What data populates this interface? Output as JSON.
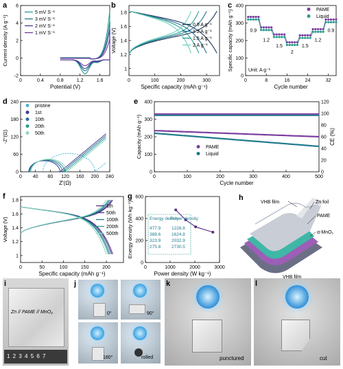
{
  "panels": {
    "a": {
      "letter": "a",
      "type": "line",
      "xlabel": "Potential (V)",
      "ylabel": "Current density (A g⁻¹)",
      "xlim": [
        0,
        1.8
      ],
      "ylim": [
        -2,
        6
      ],
      "xticks": [
        0,
        0.4,
        0.8,
        1.2,
        1.6
      ],
      "yticks": [
        -2,
        0,
        2,
        4,
        6
      ],
      "legend": [
        "5 mV S⁻¹",
        "3 mV S⁻¹",
        "2 mV S⁻¹",
        "1 mV S⁻¹"
      ],
      "series": [
        {
          "name": "5 mV S⁻¹",
          "color": "#2a9d8f",
          "amp": 1.0
        },
        {
          "name": "3 mV S⁻¹",
          "color": "#1f7a8c",
          "amp": 0.78
        },
        {
          "name": "2 mV S⁻¹",
          "color": "#3b3b9e",
          "amp": 0.62
        },
        {
          "name": "1 mV S⁻¹",
          "color": "#6a3d9a",
          "amp": 0.42
        }
      ]
    },
    "b": {
      "letter": "b",
      "type": "line",
      "xlabel": "Specific capacity (mAh g⁻¹)",
      "ylabel": "Voltage (V)",
      "xlim": [
        0,
        350
      ],
      "ylim": [
        0.9,
        1.9
      ],
      "xticks": [
        0,
        100,
        200,
        300
      ],
      "yticks": [
        1.0,
        1.2,
        1.4,
        1.6,
        1.8
      ],
      "legend": [
        "0.9 A g⁻¹",
        "1.2 A g⁻¹",
        "1.5 A g⁻¹",
        "2 A g⁻¹"
      ],
      "series": [
        {
          "name": "0.9 A g⁻¹",
          "color": "#1d3557",
          "cap": 340
        },
        {
          "name": "1.2 A g⁻¹",
          "color": "#2a6f97",
          "cap": 300
        },
        {
          "name": "1.5 A g⁻¹",
          "color": "#2a9d8f",
          "cap": 270
        },
        {
          "name": "2 A g⁻¹",
          "color": "#6fcfbf",
          "cap": 240
        }
      ]
    },
    "c": {
      "letter": "c",
      "type": "scatter",
      "xlabel": "Cycle number",
      "ylabel": "Specific capacity (mAh g⁻¹)",
      "xlim": [
        0,
        35
      ],
      "ylim": [
        0,
        400
      ],
      "xticks": [
        0,
        8,
        16,
        24,
        32
      ],
      "yticks": [
        0,
        100,
        200,
        300,
        400
      ],
      "legend": [
        "PAME",
        "Liquid"
      ],
      "unit_note": "Unit: A g⁻¹",
      "rate_labels": [
        "0.9",
        "1.2",
        "1.5",
        "2",
        "1.5",
        "1.2",
        "0.9"
      ],
      "series": [
        {
          "name": "PAME",
          "color": "#7b3fa0",
          "steps": [
            335,
            275,
            235,
            190,
            230,
            265,
            320
          ]
        },
        {
          "name": "Liquid",
          "color": "#2a9d8f",
          "steps": [
            320,
            260,
            220,
            175,
            215,
            250,
            305
          ]
        }
      ]
    },
    "d": {
      "letter": "d",
      "type": "line",
      "xlabel": "Z'(Ω)",
      "ylabel": "-Z''(Ω)",
      "xlim": [
        0,
        240
      ],
      "ylim": [
        0,
        240
      ],
      "xticks": [
        0,
        40,
        80,
        120,
        160,
        200,
        240
      ],
      "yticks": [
        0,
        60,
        120,
        180,
        240
      ],
      "legend": [
        "pristine",
        "1st",
        "10th",
        "20th",
        "50th"
      ],
      "series": [
        {
          "name": "pristine",
          "color": "#4fb3d9",
          "r": 70,
          "start": 60
        },
        {
          "name": "1st",
          "color": "#3d3d8f",
          "r": 42,
          "start": 22
        },
        {
          "name": "10th",
          "color": "#2a6f97",
          "r": 44,
          "start": 24
        },
        {
          "name": "20th",
          "color": "#2a9d8f",
          "r": 46,
          "start": 26
        },
        {
          "name": "50th",
          "color": "#8fd6c6",
          "r": 48,
          "start": 28
        }
      ]
    },
    "e": {
      "letter": "e",
      "type": "scatter",
      "xlabel": "Cycle number",
      "ylabel": "Capacity (mAh g⁻¹)",
      "ylabel2": "CE (%)",
      "xlim": [
        0,
        500
      ],
      "ylim": [
        0,
        400
      ],
      "ylim2": [
        0,
        120
      ],
      "xticks": [
        0,
        100,
        200,
        300,
        400,
        500
      ],
      "yticks": [
        0,
        100,
        200,
        300,
        400
      ],
      "yticks2": [
        0,
        20,
        40,
        60,
        80,
        100,
        120
      ],
      "legend": [
        "PAME",
        "Liquid"
      ],
      "series": [
        {
          "name": "PAME",
          "color": "#7b3fa0",
          "start": 235,
          "end": 200
        },
        {
          "name": "Liquid",
          "color": "#1f7a8c",
          "start": 220,
          "end": 145
        }
      ]
    },
    "f": {
      "letter": "f",
      "type": "line",
      "xlabel": "Specific capacity (mAh g⁻¹)",
      "ylabel": "Voltage (V)",
      "xlim": [
        0,
        240
      ],
      "ylim": [
        0.9,
        1.85
      ],
      "xticks": [
        0,
        50,
        100,
        150,
        200
      ],
      "yticks": [
        1.0,
        1.2,
        1.4,
        1.6,
        1.8
      ],
      "legend": [
        "1th",
        "50th",
        "100th",
        "200th",
        "500th"
      ],
      "series": [
        {
          "name": "1th",
          "color": "#5b2c83",
          "cap": 215
        },
        {
          "name": "50th",
          "color": "#3d3d8f",
          "cap": 212
        },
        {
          "name": "100th",
          "color": "#1f7a8c",
          "cap": 208
        },
        {
          "name": "200th",
          "color": "#2a9d8f",
          "cap": 205
        },
        {
          "name": "500th",
          "color": "#8fd6c6",
          "cap": 200
        }
      ]
    },
    "g": {
      "letter": "g",
      "type": "line",
      "xlabel": "Power density (W kg⁻¹)",
      "ylabel": "Energy density (Wh kg⁻¹)",
      "xlim": [
        0,
        3000
      ],
      "ylim": [
        0,
        600
      ],
      "xticks": [
        0,
        1000,
        2000,
        3000
      ],
      "yticks": [
        0,
        200,
        400,
        600
      ],
      "table_header": [
        "Energy density",
        "Power density"
      ],
      "table_rows": [
        [
          "477.9",
          "1228.8"
        ],
        [
          "388.6",
          "1624.8"
        ],
        [
          "323.9",
          "2032.9"
        ],
        [
          "275.8",
          "2730.5"
        ]
      ],
      "color": "#5b2c83"
    },
    "h": {
      "letter": "h",
      "labels": [
        "VHB film",
        "Zn foil",
        "PAME",
        "α-MnO₂",
        "VHB film"
      ]
    }
  },
  "photos": {
    "i": {
      "letter": "i",
      "handwriting": "Zn // PAME // MnO₂",
      "ruler": "1 2 3 4 5 6 7"
    },
    "j": {
      "letter": "j",
      "angles": [
        "0°",
        "90°",
        "180°",
        "rolled"
      ]
    },
    "k": {
      "letter": "k",
      "caption": "punctured"
    },
    "l": {
      "letter": "l",
      "caption": "cut"
    }
  }
}
